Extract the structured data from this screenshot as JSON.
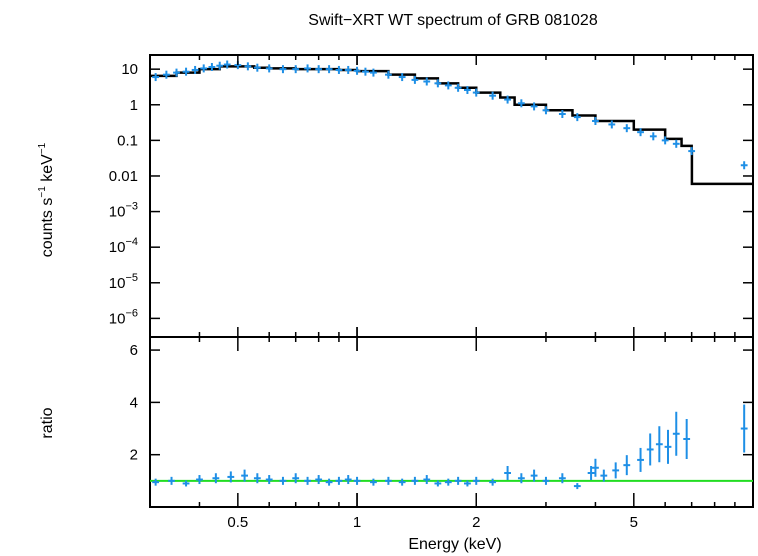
{
  "title": "Swift−XRT WT spectrum of GRB 081028",
  "colors": {
    "data": "#1e8fe6",
    "model": "#000000",
    "ratio_line": "#22dd22",
    "axes": "#000000"
  },
  "chart_data": [
    {
      "type": "scatter",
      "panel": "spectrum",
      "title": "Swift−XRT WT spectrum of GRB 081028",
      "xlabel": "",
      "ylabel_main": "counts s",
      "ylabel_sup1": "−1",
      "ylabel_mid": " keV",
      "ylabel_sup2": "−1",
      "xscale": "log",
      "yscale": "log",
      "xlim": [
        0.3,
        10
      ],
      "ylim": [
        3e-07,
        25
      ],
      "ytick_labels": [
        {
          "base": "10",
          "exp": ""
        },
        {
          "base": "1",
          "exp": ""
        },
        {
          "base": "0.1",
          "exp": ""
        },
        {
          "base": "0.01",
          "exp": ""
        },
        {
          "base": "10",
          "exp": "−3"
        },
        {
          "base": "10",
          "exp": "−4"
        },
        {
          "base": "10",
          "exp": "−5"
        },
        {
          "base": "10",
          "exp": "−6"
        }
      ],
      "ytick_values": [
        10,
        1,
        0.1,
        0.01,
        0.001,
        0.0001,
        1e-05,
        1e-06
      ],
      "series": [
        {
          "kind": "data",
          "points": [
            {
              "x": 0.31,
              "y": 6.0
            },
            {
              "x": 0.33,
              "y": 7.0
            },
            {
              "x": 0.35,
              "y": 8.0
            },
            {
              "x": 0.37,
              "y": 8.5
            },
            {
              "x": 0.39,
              "y": 9.5
            },
            {
              "x": 0.41,
              "y": 10.5
            },
            {
              "x": 0.43,
              "y": 11.5
            },
            {
              "x": 0.45,
              "y": 12.5
            },
            {
              "x": 0.47,
              "y": 13.5
            },
            {
              "x": 0.5,
              "y": 13.0
            },
            {
              "x": 0.53,
              "y": 12.0
            },
            {
              "x": 0.56,
              "y": 11.0
            },
            {
              "x": 0.6,
              "y": 10.5
            },
            {
              "x": 0.65,
              "y": 10.0
            },
            {
              "x": 0.7,
              "y": 10.0
            },
            {
              "x": 0.75,
              "y": 10.5
            },
            {
              "x": 0.8,
              "y": 10.0
            },
            {
              "x": 0.85,
              "y": 10.0
            },
            {
              "x": 0.9,
              "y": 9.5
            },
            {
              "x": 0.95,
              "y": 9.5
            },
            {
              "x": 1.0,
              "y": 9.0
            },
            {
              "x": 1.05,
              "y": 8.5
            },
            {
              "x": 1.1,
              "y": 8.0
            },
            {
              "x": 1.2,
              "y": 7.0
            },
            {
              "x": 1.3,
              "y": 6.0
            },
            {
              "x": 1.4,
              "y": 5.0
            },
            {
              "x": 1.5,
              "y": 4.5
            },
            {
              "x": 1.6,
              "y": 4.0
            },
            {
              "x": 1.7,
              "y": 3.5
            },
            {
              "x": 1.8,
              "y": 3.0
            },
            {
              "x": 1.9,
              "y": 2.6
            },
            {
              "x": 2.0,
              "y": 2.2
            },
            {
              "x": 2.2,
              "y": 1.8
            },
            {
              "x": 2.4,
              "y": 1.4
            },
            {
              "x": 2.6,
              "y": 1.1
            },
            {
              "x": 2.8,
              "y": 0.9
            },
            {
              "x": 3.0,
              "y": 0.7
            },
            {
              "x": 3.3,
              "y": 0.55
            },
            {
              "x": 3.6,
              "y": 0.45
            },
            {
              "x": 4.0,
              "y": 0.35
            },
            {
              "x": 4.4,
              "y": 0.28
            },
            {
              "x": 4.8,
              "y": 0.22
            },
            {
              "x": 5.2,
              "y": 0.17
            },
            {
              "x": 5.6,
              "y": 0.13
            },
            {
              "x": 6.0,
              "y": 0.1
            },
            {
              "x": 6.4,
              "y": 0.08
            },
            {
              "x": 7.0,
              "y": 0.05
            },
            {
              "x": 9.5,
              "y": 0.02
            }
          ]
        },
        {
          "kind": "model",
          "points": [
            {
              "x": 0.3,
              "y": 6.5
            },
            {
              "x": 0.35,
              "y": 8.0
            },
            {
              "x": 0.4,
              "y": 10.0
            },
            {
              "x": 0.45,
              "y": 12.0
            },
            {
              "x": 0.5,
              "y": 12.0
            },
            {
              "x": 0.55,
              "y": 11.0
            },
            {
              "x": 0.6,
              "y": 10.5
            },
            {
              "x": 0.7,
              "y": 10.0
            },
            {
              "x": 0.8,
              "y": 10.0
            },
            {
              "x": 0.9,
              "y": 9.5
            },
            {
              "x": 1.0,
              "y": 8.8
            },
            {
              "x": 1.2,
              "y": 7.0
            },
            {
              "x": 1.4,
              "y": 5.5
            },
            {
              "x": 1.6,
              "y": 4.0
            },
            {
              "x": 1.8,
              "y": 3.0
            },
            {
              "x": 2.0,
              "y": 2.2
            },
            {
              "x": 2.3,
              "y": 1.6
            },
            {
              "x": 2.5,
              "y": 1.0
            },
            {
              "x": 3.0,
              "y": 0.7
            },
            {
              "x": 3.5,
              "y": 0.5
            },
            {
              "x": 4.0,
              "y": 0.35
            },
            {
              "x": 5.0,
              "y": 0.2
            },
            {
              "x": 6.0,
              "y": 0.11
            },
            {
              "x": 6.6,
              "y": 0.07
            },
            {
              "x": 7.0,
              "y": 0.05
            },
            {
              "x": 7.01,
              "y": 0.006
            },
            {
              "x": 10.0,
              "y": 0.006
            }
          ]
        }
      ]
    },
    {
      "type": "scatter",
      "panel": "ratio",
      "xlabel": "Energy (keV)",
      "ylabel": "ratio",
      "xscale": "log",
      "yscale": "linear",
      "xlim": [
        0.3,
        10
      ],
      "ylim": [
        0.0,
        6.5
      ],
      "ytick_values": [
        2,
        4,
        6
      ],
      "ytick_labels": [
        "2",
        "4",
        "6"
      ],
      "xtick_values": [
        0.5,
        1,
        2,
        5
      ],
      "xtick_labels": [
        "0.5",
        "1",
        "2",
        "5"
      ],
      "reference_line": 1.0,
      "points": [
        {
          "x": 0.31,
          "y": 0.95
        },
        {
          "x": 0.34,
          "y": 1.0
        },
        {
          "x": 0.37,
          "y": 0.9
        },
        {
          "x": 0.4,
          "y": 1.05
        },
        {
          "x": 0.44,
          "y": 1.1
        },
        {
          "x": 0.48,
          "y": 1.15
        },
        {
          "x": 0.52,
          "y": 1.2
        },
        {
          "x": 0.56,
          "y": 1.1
        },
        {
          "x": 0.6,
          "y": 1.05
        },
        {
          "x": 0.65,
          "y": 1.0
        },
        {
          "x": 0.7,
          "y": 1.1
        },
        {
          "x": 0.75,
          "y": 1.0
        },
        {
          "x": 0.8,
          "y": 1.05
        },
        {
          "x": 0.85,
          "y": 0.95
        },
        {
          "x": 0.9,
          "y": 1.0
        },
        {
          "x": 0.95,
          "y": 1.05
        },
        {
          "x": 1.0,
          "y": 1.0
        },
        {
          "x": 1.1,
          "y": 0.95
        },
        {
          "x": 1.2,
          "y": 1.0
        },
        {
          "x": 1.3,
          "y": 0.95
        },
        {
          "x": 1.4,
          "y": 1.0
        },
        {
          "x": 1.5,
          "y": 1.05
        },
        {
          "x": 1.6,
          "y": 0.9
        },
        {
          "x": 1.7,
          "y": 0.95
        },
        {
          "x": 1.8,
          "y": 1.0
        },
        {
          "x": 1.9,
          "y": 0.9
        },
        {
          "x": 2.0,
          "y": 1.0
        },
        {
          "x": 2.2,
          "y": 0.95
        },
        {
          "x": 2.4,
          "y": 1.3
        },
        {
          "x": 2.6,
          "y": 1.1
        },
        {
          "x": 2.8,
          "y": 1.2
        },
        {
          "x": 3.0,
          "y": 1.0
        },
        {
          "x": 3.3,
          "y": 1.1
        },
        {
          "x": 3.6,
          "y": 0.8
        },
        {
          "x": 3.9,
          "y": 1.3
        },
        {
          "x": 4.0,
          "y": 1.5
        },
        {
          "x": 4.2,
          "y": 1.2
        },
        {
          "x": 4.5,
          "y": 1.4
        },
        {
          "x": 4.8,
          "y": 1.6
        },
        {
          "x": 5.2,
          "y": 1.8
        },
        {
          "x": 5.5,
          "y": 2.2
        },
        {
          "x": 5.8,
          "y": 2.4
        },
        {
          "x": 6.1,
          "y": 2.3
        },
        {
          "x": 6.4,
          "y": 2.8
        },
        {
          "x": 6.8,
          "y": 2.6
        },
        {
          "x": 9.5,
          "y": 3.0
        }
      ]
    }
  ]
}
